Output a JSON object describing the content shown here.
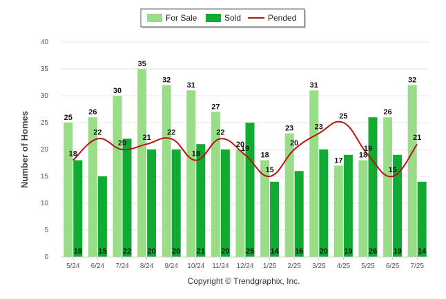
{
  "chart_data": {
    "type": "bar",
    "categories": [
      "5/24",
      "6/24",
      "7/24",
      "8/24",
      "9/24",
      "10/24",
      "11/24",
      "12/24",
      "1/25",
      "2/25",
      "3/25",
      "4/25",
      "5/25",
      "6/25",
      "7/25"
    ],
    "series": [
      {
        "name": "For Sale",
        "type": "bar",
        "color": "#99dd88",
        "values": [
          25,
          26,
          30,
          35,
          32,
          31,
          27,
          20,
          18,
          23,
          31,
          17,
          18,
          26,
          32
        ]
      },
      {
        "name": "Sold",
        "type": "bar",
        "color": "#11aa33",
        "values": [
          18,
          15,
          22,
          20,
          20,
          21,
          20,
          25,
          14,
          16,
          20,
          19,
          26,
          19,
          14
        ]
      },
      {
        "name": "Pended",
        "type": "line",
        "color": "#bb1111",
        "values": [
          18,
          22,
          20,
          21,
          22,
          18,
          22,
          19,
          15,
          20,
          23,
          25,
          19,
          15,
          21
        ]
      }
    ],
    "ylabel": "Number of Homes",
    "ylim": [
      0,
      40
    ],
    "yticks": [
      0,
      5,
      10,
      15,
      20,
      25,
      30,
      35,
      40
    ],
    "grid": true,
    "legend_position": "top-center",
    "credit": "Copyright © Trendgraphix, Inc."
  }
}
